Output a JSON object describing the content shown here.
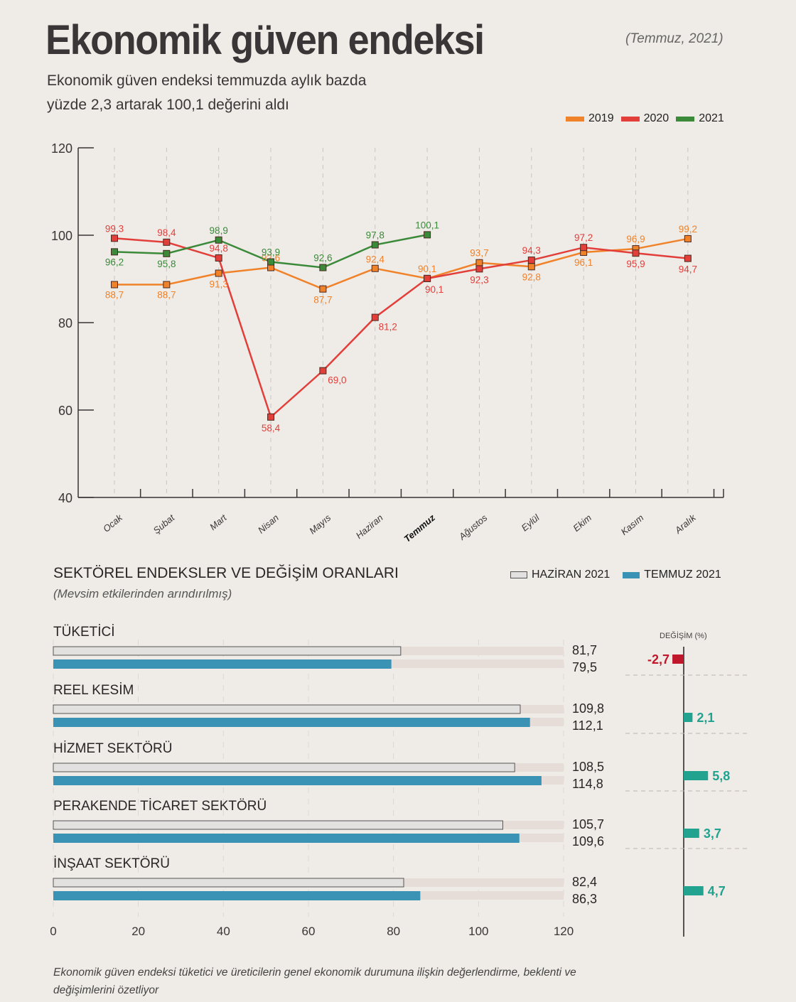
{
  "header": {
    "title": "Ekonomik güven endeksi",
    "date": "(Temmuz, 2021)",
    "subtitle_line1": "Ekonomik güven endeksi temmuzda aylık bazda",
    "subtitle_line2": "yüzde 2,3 artarak 100,1 değerini aldı"
  },
  "colors": {
    "y2019": "#f0822a",
    "y2020": "#e23e3a",
    "y2021": "#3a8a3a",
    "june": "#e3e1e0",
    "july": "#3a93b5",
    "negative": "#c0182a",
    "positive": "#22a390"
  },
  "chart_data": [
    {
      "type": "line",
      "title": "Ekonomik güven endeksi",
      "xlabel": "",
      "ylabel": "",
      "ylim": [
        40,
        120
      ],
      "yticks": [
        40,
        60,
        80,
        100,
        120
      ],
      "grid": "vertical dashed per month",
      "legend_position": "top-right",
      "categories": [
        "Ocak",
        "Şubat",
        "Mart",
        "Nisan",
        "Mayıs",
        "Haziran",
        "Temmuz",
        "Ağustos",
        "Eylül",
        "Ekim",
        "Kasım",
        "Aralık"
      ],
      "highlight_category": "Temmuz",
      "series": [
        {
          "name": "2019",
          "values": [
            88.7,
            88.7,
            91.3,
            92.6,
            87.7,
            92.4,
            90.1,
            93.7,
            92.8,
            96.1,
            96.9,
            99.2
          ],
          "labels": [
            "88,7",
            "88,7",
            "91,3",
            "92,6",
            "87,7",
            "92,4",
            "90,1",
            "93,7",
            "92,8",
            "96,1",
            "96,9",
            "99,2"
          ]
        },
        {
          "name": "2020",
          "values": [
            99.3,
            98.4,
            94.8,
            58.4,
            69.0,
            81.2,
            90.1,
            92.3,
            94.3,
            97.2,
            95.9,
            94.7
          ],
          "labels": [
            "99,3",
            "98,4",
            "94,8",
            "58,4",
            "69,0",
            "81,2",
            "90,1",
            "92,3",
            "94,3",
            "97,2",
            "95,9",
            "94,7"
          ]
        },
        {
          "name": "2021",
          "values": [
            96.2,
            95.8,
            98.9,
            93.9,
            92.6,
            97.8,
            100.1
          ],
          "labels": [
            "96,2",
            "95,8",
            "98,9",
            "93,9",
            "92,6",
            "97,8",
            "100,1"
          ]
        }
      ]
    },
    {
      "type": "bar",
      "title": "SEKTÖREL ENDEKSLER VE DEĞİŞİM ORANLARI",
      "subtitle": "(Mevsim etkilerinden arındırılmış)",
      "orientation": "horizontal",
      "xlim": [
        0,
        120
      ],
      "xticks": [
        0,
        20,
        40,
        60,
        80,
        100,
        120
      ],
      "legend": [
        "HAZİRAN 2021",
        "TEMMUZ 2021"
      ],
      "legend_position": "top-right",
      "categories": [
        "TÜKETİCİ",
        "REEL KESİM",
        "HİZMET SEKTÖRÜ",
        "PERAKENDE TİCARET SEKTÖRÜ",
        "İNŞAAT SEKTÖRÜ"
      ],
      "series": [
        {
          "name": "HAZİRAN 2021",
          "values": [
            81.7,
            109.8,
            108.5,
            105.7,
            82.4
          ],
          "labels": [
            "81,7",
            "109,8",
            "108,5",
            "105,7",
            "82,4"
          ]
        },
        {
          "name": "TEMMUZ 2021",
          "values": [
            79.5,
            112.1,
            114.8,
            109.6,
            86.3
          ],
          "labels": [
            "79,5",
            "112,1",
            "114,8",
            "109,6",
            "86,3"
          ]
        }
      ],
      "change_header": "DEĞİŞİM (%)",
      "change": {
        "values": [
          -2.7,
          2.1,
          5.8,
          3.7,
          4.7
        ],
        "labels": [
          "-2,7",
          "2,1",
          "5,8",
          "3,7",
          "4,7"
        ]
      }
    }
  ],
  "footnote": "Ekonomik güven endeksi tüketici ve üreticilerin genel ekonomik durumuna ilişkin değerlendirme, beklenti ve değişimlerini özetliyor"
}
